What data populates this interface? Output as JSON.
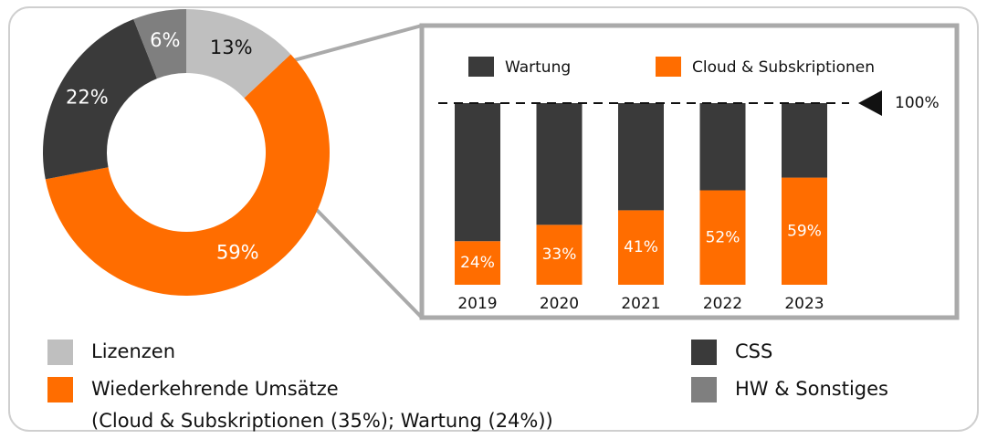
{
  "chart_data": [
    {
      "type": "donut",
      "categories": [
        "Lizenzen",
        "Wiederkehrende Umsätze",
        "CSS",
        "HW & Sonstiges"
      ],
      "values": [
        13,
        59,
        22,
        6
      ],
      "value_labels": [
        "13%",
        "59%",
        "22%",
        "6%"
      ],
      "colors": [
        "#bfbfbf",
        "#ff6d00",
        "#3a3a3a",
        "#7f7f7f"
      ],
      "legend_note": "(Cloud & Subskriptionen (35%); Wartung (24%))"
    },
    {
      "type": "stacked_bar",
      "categories": [
        "2019",
        "2020",
        "2021",
        "2022",
        "2023"
      ],
      "series": [
        {
          "name": "Wartung",
          "color": "#3a3a3a",
          "values": [
            76,
            67,
            59,
            48,
            41
          ]
        },
        {
          "name": "Cloud & Subskriptionen",
          "color": "#ff6d00",
          "values": [
            24,
            33,
            41,
            52,
            59
          ],
          "value_labels": [
            "24%",
            "33%",
            "41%",
            "52%",
            "59%"
          ]
        }
      ],
      "ylim": [
        0,
        100
      ],
      "reference_line": {
        "value": 100,
        "label": "100%"
      }
    }
  ]
}
